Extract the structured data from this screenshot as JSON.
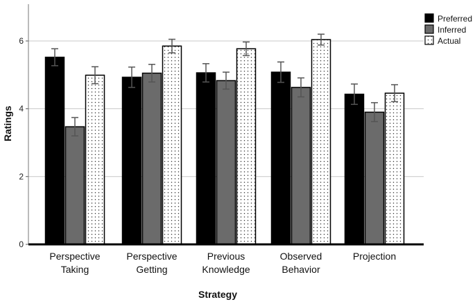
{
  "chart_data": {
    "type": "bar",
    "title": "",
    "xlabel": "Strategy",
    "ylabel": "Ratings",
    "ylim": [
      0,
      7
    ],
    "yticks": [
      0,
      2,
      4,
      6
    ],
    "grid": true,
    "legend_position": "top-right",
    "categories": [
      [
        "Perspective",
        "Taking"
      ],
      [
        "Perspective",
        "Getting"
      ],
      [
        "Previous",
        "Knowledge"
      ],
      [
        "Observed",
        "Behavior"
      ],
      [
        "Projection"
      ]
    ],
    "series": [
      {
        "name": "Preferred",
        "color": "#000000",
        "pattern": "solid",
        "values": [
          5.52,
          4.93,
          5.06,
          5.08,
          4.43
        ],
        "errors": [
          0.25,
          0.3,
          0.27,
          0.3,
          0.3
        ]
      },
      {
        "name": "Inferred",
        "color": "#6b6b6b",
        "pattern": "solid",
        "values": [
          3.47,
          5.05,
          4.83,
          4.63,
          3.9
        ],
        "errors": [
          0.27,
          0.26,
          0.25,
          0.28,
          0.28
        ]
      },
      {
        "name": "Actual",
        "color": "#ffffff",
        "pattern": "dots",
        "values": [
          4.99,
          5.85,
          5.77,
          6.04,
          4.46
        ],
        "errors": [
          0.25,
          0.2,
          0.2,
          0.16,
          0.25
        ]
      }
    ]
  }
}
